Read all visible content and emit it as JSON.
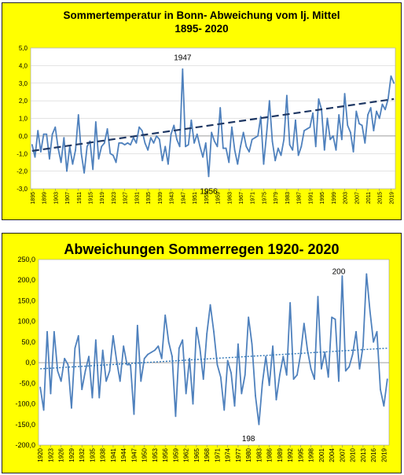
{
  "chart_data": [
    {
      "type": "line",
      "title_line1": "Sommertemperatur in Bonn- Abweichung vom lj. Mittel",
      "title_line2": "1895- 2020",
      "ylim": [
        -3.0,
        5.0
      ],
      "yticks": [
        "-3,0",
        "-2,0",
        "-1,0",
        "0,0",
        "1,0",
        "2,0",
        "3,0",
        "4,0",
        "5,0"
      ],
      "ytick_values": [
        -3,
        -2,
        -1,
        0,
        1,
        2,
        3,
        4,
        5
      ],
      "xticks": [
        "1895",
        "1899",
        "1903",
        "1907",
        "1911",
        "1915",
        "1919",
        "1923",
        "1927",
        "1931",
        "1935",
        "1939",
        "1943",
        "1947",
        "1951",
        "1955",
        "1959",
        "1963",
        "1967",
        "1971",
        "1975",
        "1979",
        "1983",
        "1987",
        "1991",
        "1995",
        "1999",
        "2003",
        "2007",
        "2011",
        "2015",
        "2019"
      ],
      "grid": true,
      "series_color": "#4f81bd",
      "trend_color": "#1f3864",
      "x_start": 1895,
      "values": [
        -0.5,
        -1.2,
        0.3,
        -0.9,
        0.1,
        0.1,
        -1.3,
        0.1,
        0.5,
        -0.7,
        -1.5,
        -0.1,
        -2.0,
        -0.6,
        -1.6,
        -0.8,
        1.2,
        -1.0,
        -2.1,
        -0.6,
        -0.3,
        -1.9,
        0.8,
        -1.3,
        -0.6,
        -0.4,
        0.4,
        -1.0,
        -1.1,
        -1.5,
        -0.4,
        -0.4,
        -0.5,
        -0.4,
        -0.5,
        -0.1,
        -0.4,
        0.5,
        0.3,
        -0.4,
        -0.8,
        -0.1,
        -0.4,
        0.0,
        -0.2,
        -1.4,
        -0.6,
        -1.6,
        0.1,
        0.6,
        -0.2,
        -0.6,
        3.8,
        -0.6,
        -0.5,
        0.9,
        -0.4,
        0.1,
        -0.6,
        -1.2,
        -0.4,
        -2.3,
        0.2,
        -0.3,
        -0.6,
        1.6,
        -0.7,
        -0.7,
        -1.5,
        0.5,
        -0.8,
        -1.6,
        -0.6,
        0.2,
        -0.6,
        -0.9,
        -0.2,
        -0.1,
        0.0,
        1.1,
        -1.6,
        0.1,
        2.0,
        -0.3,
        -1.4,
        -0.7,
        -1.1,
        -0.2,
        2.3,
        -0.5,
        -0.8,
        0.9,
        -1.1,
        -0.6,
        0.3,
        0.4,
        0.5,
        1.3,
        -0.6,
        2.1,
        1.5,
        -0.8,
        1.0,
        -0.2,
        0.0,
        -0.8,
        1.2,
        -0.2,
        2.4,
        0.6,
        0.2,
        -0.9,
        1.4,
        0.7,
        0.6,
        -0.4,
        1.2,
        1.6,
        0.3,
        1.4,
        1.0,
        1.8,
        1.5,
        2.1,
        3.4,
        3.0
      ],
      "trend": {
        "start": [
          1895,
          -0.85
        ],
        "end": [
          2020,
          2.1
        ]
      },
      "annotations": [
        {
          "text": "1947",
          "x": 1947,
          "y": 4.3
        },
        {
          "text": "1956",
          "x": 1956,
          "y": -3.3
        }
      ]
    },
    {
      "type": "line",
      "title": "Abweichungen Sommerregen 1920- 2020",
      "ylim": [
        -200,
        250
      ],
      "yticks": [
        "-200,0",
        "-150,0",
        "-100,0",
        "-50,0",
        "0,0",
        "50,0",
        "100,0",
        "150,0",
        "200,0",
        "250,0"
      ],
      "ytick_values": [
        -200,
        -150,
        -100,
        -50,
        0,
        50,
        100,
        150,
        200,
        250
      ],
      "xticks": [
        "1920",
        "1923",
        "1926",
        "1929",
        "1932",
        "1935",
        "1938",
        "1941",
        "1944",
        "1947",
        "1950",
        "1953",
        "1956",
        "1959",
        "1962",
        "1965",
        "1968",
        "1971",
        "1974",
        "1977",
        "1980",
        "1983",
        "1986",
        "1989",
        "1992",
        "1995",
        "1998",
        "2001",
        "2004",
        "2007",
        "2010",
        "2013",
        "2016",
        "2019"
      ],
      "grid": false,
      "series_color": "#4f81bd",
      "trend_color": "#2e75b6",
      "x_start": 1920,
      "values": [
        -60,
        -115,
        75,
        -75,
        75,
        -20,
        -45,
        10,
        -5,
        -110,
        35,
        65,
        -65,
        -20,
        15,
        -85,
        55,
        -85,
        30,
        -45,
        -20,
        65,
        5,
        -45,
        40,
        -5,
        -5,
        -125,
        90,
        -45,
        10,
        20,
        25,
        30,
        40,
        10,
        115,
        50,
        15,
        -130,
        35,
        55,
        -75,
        10,
        -100,
        85,
        35,
        -40,
        70,
        140,
        75,
        -5,
        -35,
        -115,
        5,
        -25,
        -105,
        45,
        -75,
        -30,
        110,
        45,
        -80,
        -150,
        -50,
        15,
        -55,
        40,
        -90,
        -30,
        15,
        -30,
        145,
        -40,
        -30,
        20,
        95,
        30,
        -15,
        -40,
        160,
        -15,
        25,
        -35,
        110,
        105,
        -45,
        210,
        -20,
        -10,
        20,
        75,
        -15,
        40,
        215,
        125,
        50,
        75,
        -65,
        -105,
        -40
      ],
      "trend": {
        "start": [
          1920,
          -15
        ],
        "end": [
          2020,
          35
        ]
      },
      "annotations": [
        {
          "text": "200",
          "x": 2006,
          "y": 215
        },
        {
          "text": "198",
          "x": 1980,
          "y": -190
        }
      ]
    }
  ]
}
